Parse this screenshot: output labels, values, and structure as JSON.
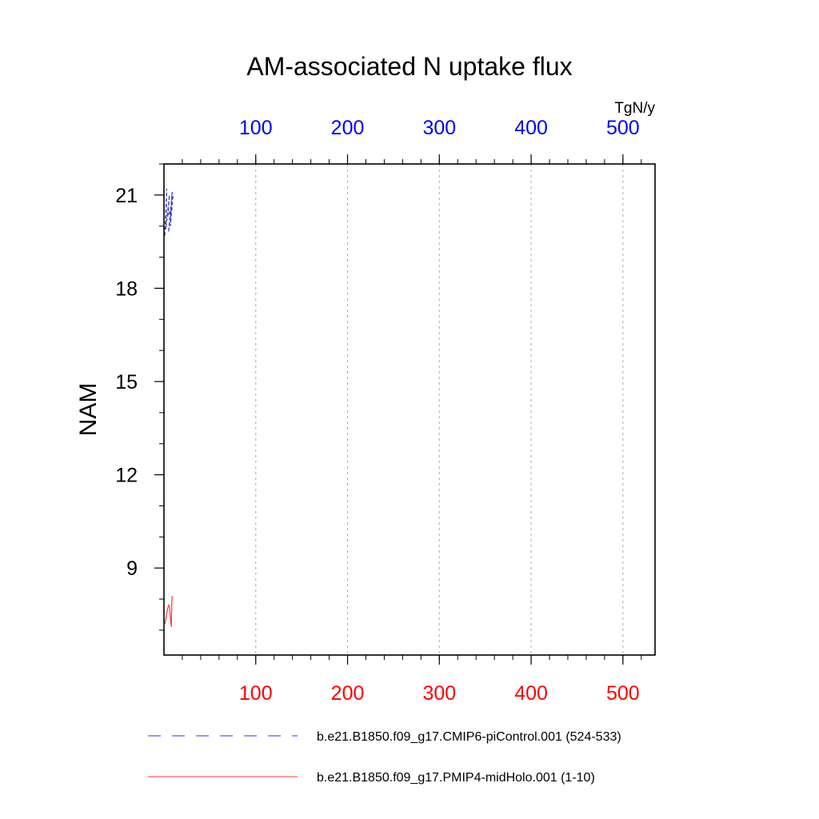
{
  "chart_data": {
    "type": "line",
    "title": "AM-associated N uptake flux",
    "ylabel": "NAM",
    "units": "TgN/y",
    "xlim": [
      0,
      535
    ],
    "ylim": [
      6.2,
      22
    ],
    "x_ticks": [
      100,
      200,
      300,
      400,
      500
    ],
    "y_ticks": [
      9,
      12,
      15,
      18,
      21
    ],
    "x_minor_step": 20,
    "y_minor_step": 1,
    "grid": "vertical-dashed",
    "top_axis_color": "#0000ff",
    "bottom_axis_color": "#ff0000",
    "series": [
      {
        "name": "b.e21.B1850.f09_g17.CMIP6-piControl.001 (524-533)",
        "color": "#3333cc",
        "dash": "dashed",
        "x": [
          1,
          3,
          2,
          6,
          4,
          8,
          5,
          9,
          7,
          10
        ],
        "y": [
          19.7,
          21.2,
          19.9,
          21.0,
          20.3,
          20.6,
          19.8,
          21.1,
          20.0,
          21.05
        ]
      },
      {
        "name": "b.e21.B1850.f09_g17.PMIP4-midHolo.001 (1-10)",
        "color": "#ff3333",
        "dash": "solid",
        "x": [
          1,
          2,
          3,
          4,
          5,
          6,
          7,
          8,
          8.5,
          9
        ],
        "y": [
          7.2,
          7.35,
          7.55,
          7.7,
          7.8,
          7.75,
          7.4,
          7.1,
          7.9,
          8.1
        ]
      }
    ]
  }
}
